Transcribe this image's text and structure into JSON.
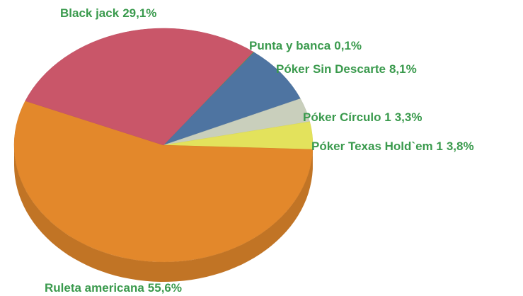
{
  "chart_data": {
    "type": "pie",
    "categories": [
      "Punta y banca",
      "Póker Sin Descarte",
      "Póker Círculo 1",
      "Póker Texas Hold`em 1",
      "Ruleta americana",
      "Black jack"
    ],
    "values": [
      0.1,
      8.1,
      3.3,
      3.8,
      55.6,
      29.1
    ],
    "value_labels": [
      "0,1%",
      "8,1%",
      "3,3%",
      "3,8%",
      "55,6%",
      "29,1%"
    ],
    "colors": [
      "#4f9a55",
      "#4e74a1",
      "#c9cfbc",
      "#e3e25c",
      "#e3882b",
      "#c95669"
    ]
  }
}
